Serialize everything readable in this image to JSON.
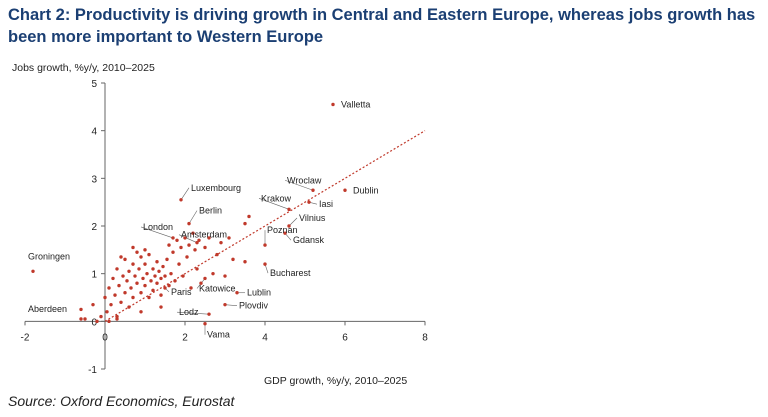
{
  "title": "Chart 2: Productivity is driving growth in Central and Eastern Europe, whereas jobs growth has been more important to Western Europe",
  "source": "Source: Oxford Economics, Eurostat",
  "colors": {
    "title": "#1b3f73",
    "point": "#c0392b",
    "trend": "#c0392b",
    "axis": "#666666"
  },
  "chart_data": {
    "type": "scatter",
    "xlabel": "GDP growth, %y/y, 2010–2025",
    "ylabel": "Jobs growth, %y/y, 2010–2025",
    "xlim": [
      -2,
      8
    ],
    "ylim": [
      -1,
      5
    ],
    "xticks": [
      -2,
      0,
      2,
      4,
      6,
      8
    ],
    "yticks": [
      -1,
      0,
      1,
      2,
      3,
      4,
      5
    ],
    "grid": false,
    "trendline": {
      "style": "dotted",
      "points": [
        [
          0,
          0
        ],
        [
          8,
          4.0
        ]
      ]
    },
    "labelled_points": [
      {
        "label": "Valletta",
        "x": 5.7,
        "y": 4.55
      },
      {
        "label": "Dublin",
        "x": 6.0,
        "y": 2.75
      },
      {
        "label": "Wroclaw",
        "x": 5.2,
        "y": 2.75
      },
      {
        "label": "Iasi",
        "x": 5.1,
        "y": 2.5
      },
      {
        "label": "Krakow",
        "x": 4.6,
        "y": 2.35
      },
      {
        "label": "Vilnius",
        "x": 4.6,
        "y": 2.0
      },
      {
        "label": "Gdansk",
        "x": 4.5,
        "y": 1.85
      },
      {
        "label": "Poznan",
        "x": 4.0,
        "y": 1.6
      },
      {
        "label": "Bucharest",
        "x": 4.0,
        "y": 1.2
      },
      {
        "label": "Luxembourg",
        "x": 1.9,
        "y": 2.55
      },
      {
        "label": "Berlin",
        "x": 2.1,
        "y": 2.05
      },
      {
        "label": "London",
        "x": 1.7,
        "y": 1.75
      },
      {
        "label": "Amsterdam",
        "x": 2.3,
        "y": 1.65
      },
      {
        "label": "Groningen",
        "x": -1.8,
        "y": 1.05
      },
      {
        "label": "Paris",
        "x": 1.5,
        "y": 0.7
      },
      {
        "label": "Katowice",
        "x": 2.5,
        "y": 0.9
      },
      {
        "label": "Lublin",
        "x": 3.3,
        "y": 0.6
      },
      {
        "label": "Plovdiv",
        "x": 3.0,
        "y": 0.35
      },
      {
        "label": "Lodz",
        "x": 2.6,
        "y": 0.15
      },
      {
        "label": "Aberdeen",
        "x": -0.6,
        "y": 0.05
      },
      {
        "label": "Vama",
        "x": 2.5,
        "y": -0.05
      }
    ],
    "points": [
      {
        "x": -0.6,
        "y": 0.25
      },
      {
        "x": -0.5,
        "y": 0.05
      },
      {
        "x": -0.3,
        "y": 0.35
      },
      {
        "x": -0.2,
        "y": 0.0
      },
      {
        "x": -0.1,
        "y": 0.1
      },
      {
        "x": 0.0,
        "y": 0.5
      },
      {
        "x": 0.05,
        "y": 0.2
      },
      {
        "x": 0.1,
        "y": 0.7
      },
      {
        "x": 0.15,
        "y": 0.35
      },
      {
        "x": 0.2,
        "y": 0.9
      },
      {
        "x": 0.25,
        "y": 0.55
      },
      {
        "x": 0.3,
        "y": 0.1
      },
      {
        "x": 0.3,
        "y": 1.1
      },
      {
        "x": 0.35,
        "y": 0.75
      },
      {
        "x": 0.4,
        "y": 0.4
      },
      {
        "x": 0.45,
        "y": 0.95
      },
      {
        "x": 0.5,
        "y": 0.6
      },
      {
        "x": 0.5,
        "y": 1.3
      },
      {
        "x": 0.55,
        "y": 0.85
      },
      {
        "x": 0.6,
        "y": 0.3
      },
      {
        "x": 0.6,
        "y": 1.05
      },
      {
        "x": 0.65,
        "y": 0.7
      },
      {
        "x": 0.7,
        "y": 1.2
      },
      {
        "x": 0.7,
        "y": 0.5
      },
      {
        "x": 0.75,
        "y": 0.95
      },
      {
        "x": 0.8,
        "y": 1.45
      },
      {
        "x": 0.8,
        "y": 0.8
      },
      {
        "x": 0.85,
        "y": 1.1
      },
      {
        "x": 0.9,
        "y": 0.6
      },
      {
        "x": 0.9,
        "y": 1.35
      },
      {
        "x": 0.95,
        "y": 0.9
      },
      {
        "x": 1.0,
        "y": 1.2
      },
      {
        "x": 1.0,
        "y": 0.75
      },
      {
        "x": 1.05,
        "y": 1.0
      },
      {
        "x": 1.1,
        "y": 0.5
      },
      {
        "x": 1.1,
        "y": 1.4
      },
      {
        "x": 1.15,
        "y": 0.85
      },
      {
        "x": 1.2,
        "y": 1.1
      },
      {
        "x": 1.2,
        "y": 0.65
      },
      {
        "x": 1.25,
        "y": 0.95
      },
      {
        "x": 1.3,
        "y": 1.25
      },
      {
        "x": 1.3,
        "y": 0.8
      },
      {
        "x": 1.35,
        "y": 1.05
      },
      {
        "x": 1.4,
        "y": 0.9
      },
      {
        "x": 1.4,
        "y": 0.55
      },
      {
        "x": 1.45,
        "y": 1.15
      },
      {
        "x": 1.5,
        "y": 0.95
      },
      {
        "x": 1.55,
        "y": 1.3
      },
      {
        "x": 1.6,
        "y": 0.75
      },
      {
        "x": 1.6,
        "y": 1.6
      },
      {
        "x": 1.65,
        "y": 1.0
      },
      {
        "x": 1.7,
        "y": 1.45
      },
      {
        "x": 1.75,
        "y": 0.85
      },
      {
        "x": 1.8,
        "y": 1.7
      },
      {
        "x": 1.85,
        "y": 1.2
      },
      {
        "x": 1.9,
        "y": 1.55
      },
      {
        "x": 1.95,
        "y": 0.95
      },
      {
        "x": 2.0,
        "y": 1.75
      },
      {
        "x": 2.05,
        "y": 1.35
      },
      {
        "x": 2.1,
        "y": 1.6
      },
      {
        "x": 2.15,
        "y": 0.7
      },
      {
        "x": 2.2,
        "y": 1.85
      },
      {
        "x": 2.25,
        "y": 1.5
      },
      {
        "x": 2.3,
        "y": 1.1
      },
      {
        "x": 2.35,
        "y": 1.7
      },
      {
        "x": 2.4,
        "y": 0.8
      },
      {
        "x": 2.5,
        "y": 1.55
      },
      {
        "x": 2.6,
        "y": 1.75
      },
      {
        "x": 2.7,
        "y": 1.0
      },
      {
        "x": 2.8,
        "y": 1.4
      },
      {
        "x": 2.9,
        "y": 1.65
      },
      {
        "x": 3.0,
        "y": 0.95
      },
      {
        "x": 3.1,
        "y": 1.75
      },
      {
        "x": 3.2,
        "y": 1.3
      },
      {
        "x": 3.5,
        "y": 2.05
      },
      {
        "x": 3.6,
        "y": 2.2
      },
      {
        "x": 3.5,
        "y": 1.25
      },
      {
        "x": 0.3,
        "y": 0.05
      },
      {
        "x": 0.1,
        "y": 0.0
      },
      {
        "x": 0.9,
        "y": 0.2
      },
      {
        "x": 1.4,
        "y": 0.3
      },
      {
        "x": 0.4,
        "y": 1.35
      },
      {
        "x": 0.7,
        "y": 1.55
      },
      {
        "x": 1.0,
        "y": 1.5
      }
    ]
  }
}
